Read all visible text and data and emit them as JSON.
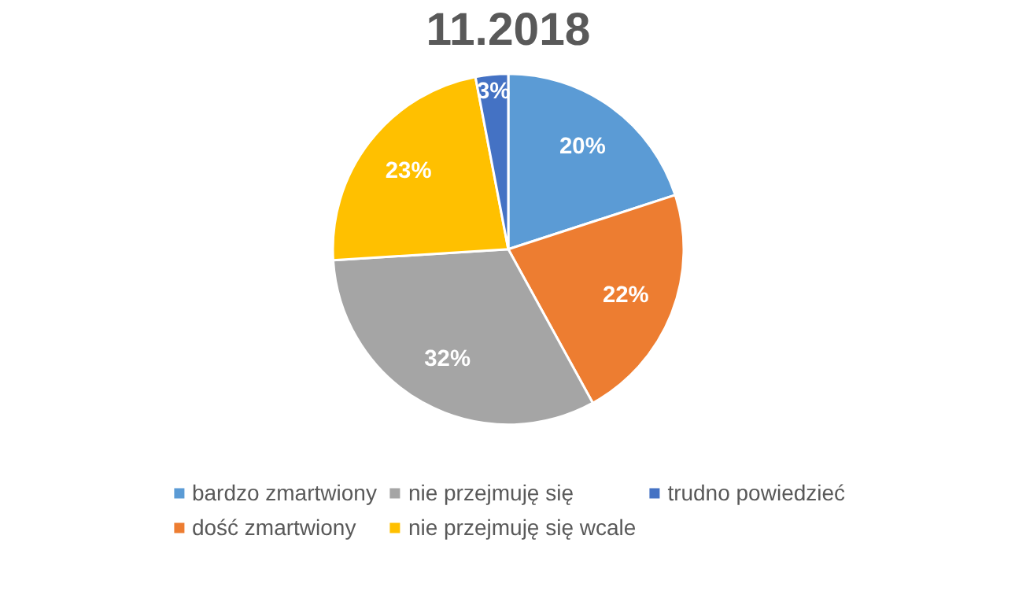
{
  "chart_data": {
    "type": "pie",
    "title": "11.2018",
    "categories": [
      "bardzo zmartwiony",
      "dość zmartwiony",
      "nie przejmuję się",
      "nie przejmuję się wcale",
      "trudno powiedzieć"
    ],
    "values": [
      20,
      22,
      32,
      23,
      3
    ],
    "value_labels": [
      "20%",
      "22%",
      "32%",
      "23%",
      "3%"
    ],
    "colors": [
      "#5b9bd5",
      "#ed7d31",
      "#a5a5a5",
      "#ffc000",
      "#4472c4"
    ],
    "legend": "bottom"
  }
}
